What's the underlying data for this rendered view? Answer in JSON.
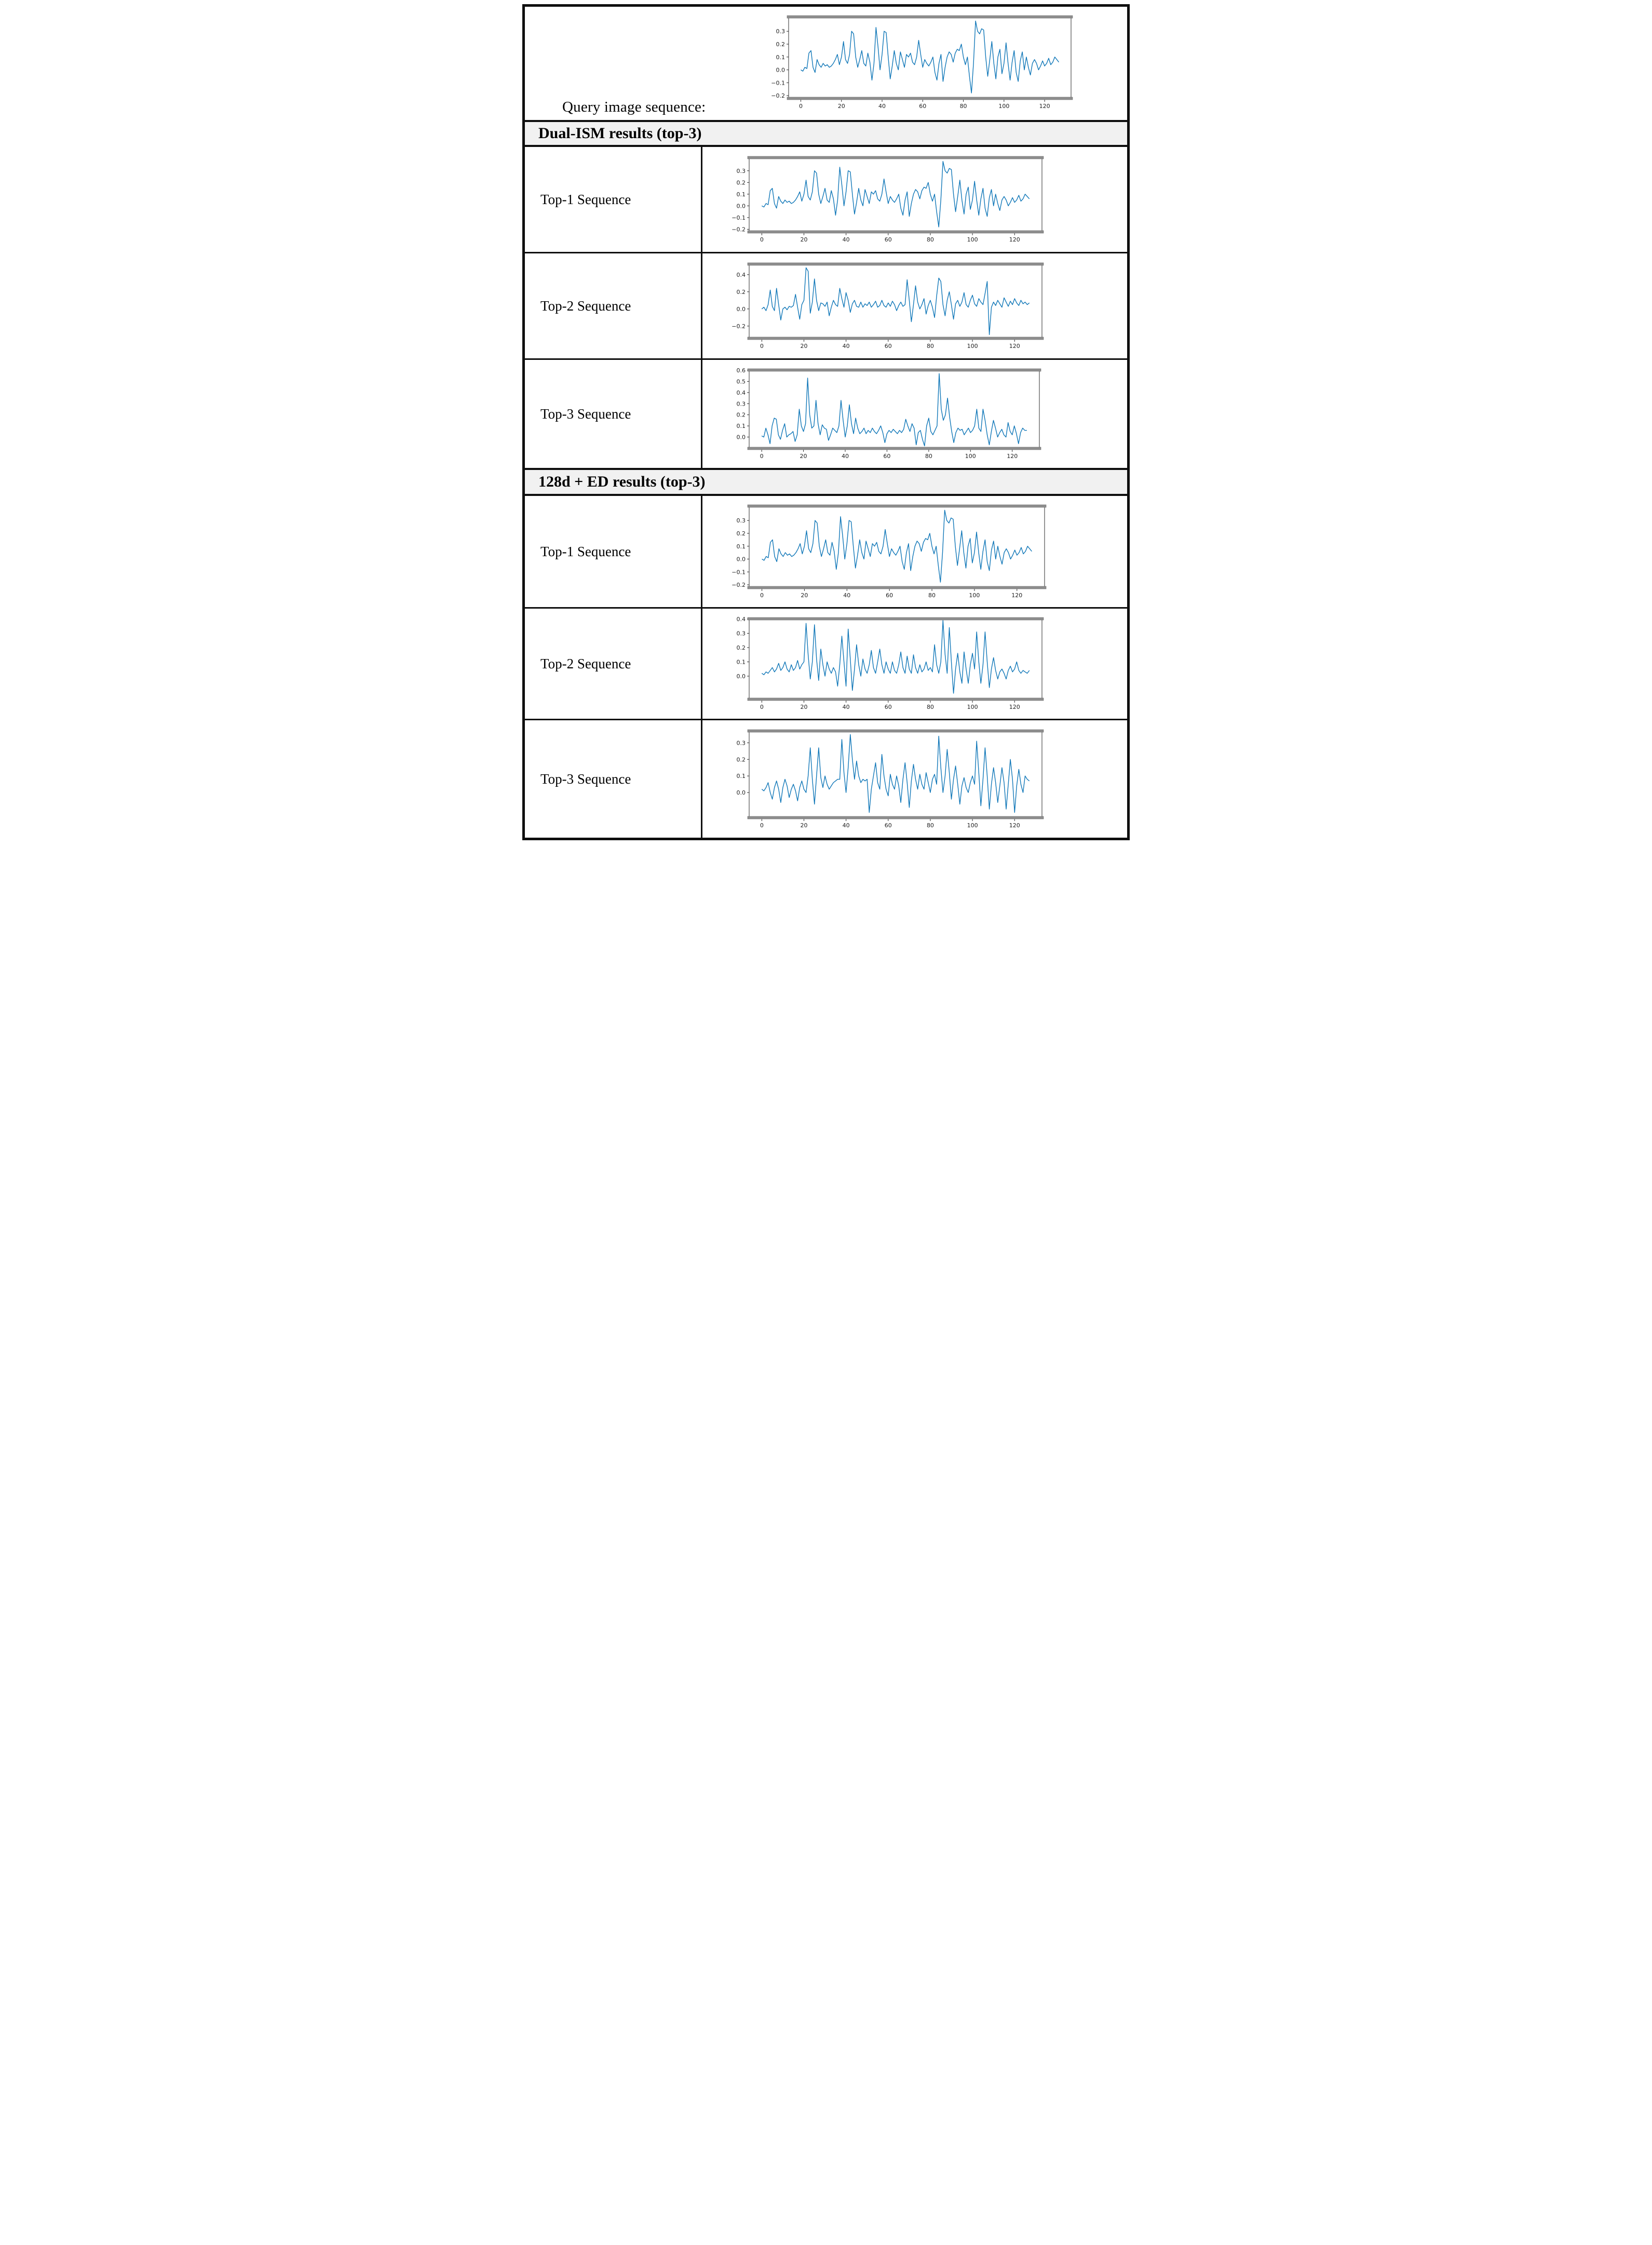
{
  "colors": {
    "line": "#1077b8",
    "header_bg": "#f1f1f1",
    "border": "#0f0f0f",
    "chart_edge_bar": "#8e8e8e",
    "tick": "#2b2b2b"
  },
  "query": {
    "label": "Query image sequence:"
  },
  "sections": [
    {
      "header": "Dual-ISM results (top-3)",
      "rows": [
        {
          "label": "Top-1 Sequence",
          "chart_id": "dual_top1"
        },
        {
          "label": "Top-2 Sequence",
          "chart_id": "dual_top2"
        },
        {
          "label": "Top-3 Sequence",
          "chart_id": "dual_top3"
        }
      ]
    },
    {
      "header": "128d + ED results (top-3)",
      "rows": [
        {
          "label": "Top-1 Sequence",
          "chart_id": "ed_top1"
        },
        {
          "label": "Top-2 Sequence",
          "chart_id": "ed_top2"
        },
        {
          "label": "Top-3 Sequence",
          "chart_id": "ed_top3"
        }
      ]
    }
  ],
  "chart_data": [
    {
      "id": "query",
      "type": "line",
      "title": "",
      "xlabel": "",
      "ylabel": "",
      "x_start": 0,
      "x_step": 1,
      "xlim": [
        -6,
        133
      ],
      "ylim": [
        -0.22,
        0.41
      ],
      "xticks": [
        0,
        20,
        40,
        60,
        80,
        100,
        120
      ],
      "yticks": [
        0.3,
        0.2,
        0.1,
        0.0,
        -0.1,
        -0.2
      ],
      "values": [
        0.0,
        -0.01,
        0.02,
        0.01,
        0.13,
        0.15,
        0.02,
        -0.02,
        0.08,
        0.04,
        0.02,
        0.05,
        0.03,
        0.04,
        0.02,
        0.03,
        0.05,
        0.08,
        0.12,
        0.04,
        0.1,
        0.22,
        0.08,
        0.05,
        0.12,
        0.3,
        0.28,
        0.1,
        0.02,
        0.08,
        0.15,
        0.05,
        0.03,
        0.13,
        0.06,
        -0.08,
        0.05,
        0.33,
        0.18,
        0.0,
        0.12,
        0.3,
        0.29,
        0.1,
        -0.07,
        0.03,
        0.15,
        0.05,
        0.0,
        0.14,
        0.08,
        0.02,
        0.12,
        0.1,
        0.13,
        0.06,
        0.04,
        0.1,
        0.23,
        0.12,
        0.02,
        0.08,
        0.05,
        0.03,
        0.06,
        0.1,
        -0.02,
        -0.08,
        0.05,
        0.12,
        -0.09,
        0.02,
        0.1,
        0.14,
        0.12,
        0.06,
        0.13,
        0.16,
        0.15,
        0.2,
        0.1,
        0.04,
        0.1,
        -0.05,
        -0.18,
        0.05,
        0.38,
        0.3,
        0.28,
        0.32,
        0.31,
        0.1,
        -0.05,
        0.08,
        0.22,
        0.05,
        -0.07,
        0.1,
        0.16,
        -0.03,
        0.05,
        0.21,
        0.05,
        -0.08,
        0.06,
        0.15,
        -0.02,
        -0.09,
        0.07,
        0.14,
        0.0,
        0.1,
        0.02,
        -0.04,
        0.05,
        0.08,
        0.05,
        0.0,
        0.03,
        0.07,
        0.03,
        0.05,
        0.09,
        0.04,
        0.06,
        0.1,
        0.08,
        0.06
      ]
    },
    {
      "id": "dual_top1",
      "type": "line",
      "title": "",
      "xlabel": "",
      "ylabel": "",
      "x_start": 0,
      "x_step": 1,
      "xlim": [
        -6,
        133
      ],
      "ylim": [
        -0.22,
        0.41
      ],
      "xticks": [
        0,
        20,
        40,
        60,
        80,
        100,
        120
      ],
      "yticks": [
        0.3,
        0.2,
        0.1,
        0.0,
        -0.1,
        -0.2
      ],
      "values": [
        0.0,
        -0.01,
        0.02,
        0.01,
        0.13,
        0.15,
        0.02,
        -0.02,
        0.08,
        0.04,
        0.02,
        0.05,
        0.03,
        0.04,
        0.02,
        0.03,
        0.05,
        0.08,
        0.12,
        0.04,
        0.1,
        0.22,
        0.08,
        0.05,
        0.12,
        0.3,
        0.28,
        0.1,
        0.02,
        0.08,
        0.15,
        0.05,
        0.03,
        0.13,
        0.06,
        -0.08,
        0.05,
        0.33,
        0.18,
        0.0,
        0.12,
        0.3,
        0.29,
        0.1,
        -0.07,
        0.03,
        0.15,
        0.05,
        0.0,
        0.14,
        0.08,
        0.02,
        0.12,
        0.1,
        0.13,
        0.06,
        0.04,
        0.1,
        0.23,
        0.12,
        0.02,
        0.08,
        0.05,
        0.03,
        0.06,
        0.1,
        -0.02,
        -0.08,
        0.05,
        0.12,
        -0.09,
        0.02,
        0.1,
        0.14,
        0.12,
        0.06,
        0.13,
        0.16,
        0.15,
        0.2,
        0.1,
        0.04,
        0.1,
        -0.05,
        -0.18,
        0.05,
        0.38,
        0.3,
        0.28,
        0.32,
        0.31,
        0.1,
        -0.05,
        0.08,
        0.22,
        0.05,
        -0.07,
        0.1,
        0.16,
        -0.03,
        0.05,
        0.21,
        0.05,
        -0.08,
        0.06,
        0.15,
        -0.02,
        -0.09,
        0.07,
        0.14,
        0.0,
        0.1,
        0.02,
        -0.04,
        0.05,
        0.08,
        0.05,
        0.0,
        0.03,
        0.07,
        0.03,
        0.05,
        0.09,
        0.04,
        0.06,
        0.1,
        0.08,
        0.06
      ]
    },
    {
      "id": "dual_top2",
      "type": "line",
      "title": "",
      "xlabel": "",
      "ylabel": "",
      "x_start": 0,
      "x_step": 1,
      "xlim": [
        -6,
        133
      ],
      "ylim": [
        -0.34,
        0.52
      ],
      "xticks": [
        0,
        20,
        40,
        60,
        80,
        100,
        120
      ],
      "yticks": [
        0.4,
        0.2,
        0.0,
        -0.2
      ],
      "values": [
        0.0,
        0.02,
        -0.02,
        0.05,
        0.22,
        0.03,
        -0.02,
        0.24,
        0.05,
        -0.13,
        0.0,
        0.02,
        -0.01,
        0.03,
        0.02,
        0.04,
        0.17,
        0.02,
        -0.12,
        0.05,
        0.1,
        0.48,
        0.44,
        -0.05,
        0.08,
        0.35,
        0.1,
        -0.02,
        0.07,
        0.06,
        0.03,
        0.08,
        -0.08,
        0.02,
        0.1,
        0.05,
        0.03,
        0.24,
        0.12,
        0.02,
        0.19,
        0.1,
        -0.04,
        0.06,
        0.1,
        0.03,
        0.02,
        0.08,
        0.02,
        0.06,
        0.04,
        0.08,
        0.02,
        0.05,
        0.09,
        0.02,
        0.04,
        0.1,
        0.04,
        0.02,
        0.07,
        0.03,
        0.09,
        0.05,
        -0.02,
        0.04,
        0.08,
        0.03,
        0.05,
        0.34,
        0.1,
        -0.15,
        0.05,
        0.27,
        0.08,
        0.0,
        0.05,
        0.12,
        -0.06,
        0.04,
        0.1,
        0.02,
        -0.1,
        0.15,
        0.36,
        0.32,
        0.05,
        -0.08,
        0.1,
        0.2,
        0.05,
        -0.12,
        0.06,
        0.1,
        0.03,
        0.08,
        0.19,
        0.05,
        0.02,
        0.1,
        0.16,
        0.06,
        0.03,
        0.12,
        0.08,
        0.05,
        0.18,
        0.32,
        -0.3,
        0.02,
        0.08,
        0.04,
        0.1,
        0.06,
        0.02,
        0.13,
        0.08,
        0.03,
        0.09,
        0.05,
        0.12,
        0.07,
        0.04,
        0.1,
        0.06,
        0.08,
        0.05,
        0.07
      ]
    },
    {
      "id": "dual_top3",
      "type": "line",
      "title": "",
      "xlabel": "",
      "ylabel": "",
      "x_start": 0,
      "x_step": 1,
      "xlim": [
        -6,
        133
      ],
      "ylim": [
        -0.1,
        0.6
      ],
      "xticks": [
        0,
        20,
        40,
        60,
        80,
        100,
        120
      ],
      "yticks": [
        0.6,
        0.5,
        0.4,
        0.3,
        0.2,
        0.1,
        0.0
      ],
      "values": [
        0.01,
        0.0,
        0.08,
        0.02,
        -0.06,
        0.1,
        0.17,
        0.16,
        0.02,
        -0.02,
        0.06,
        0.12,
        0.0,
        0.02,
        0.03,
        0.05,
        -0.04,
        0.02,
        0.25,
        0.1,
        0.05,
        0.12,
        0.53,
        0.2,
        0.08,
        0.1,
        0.33,
        0.12,
        0.02,
        0.11,
        0.08,
        0.07,
        -0.03,
        0.02,
        0.08,
        0.06,
        0.04,
        0.1,
        0.33,
        0.15,
        0.0,
        0.1,
        0.29,
        0.12,
        0.03,
        0.17,
        0.08,
        0.03,
        0.05,
        0.08,
        0.03,
        0.06,
        0.04,
        0.08,
        0.05,
        0.03,
        0.06,
        0.1,
        0.04,
        -0.05,
        0.03,
        0.06,
        0.04,
        0.07,
        0.05,
        0.03,
        0.06,
        0.04,
        0.07,
        0.16,
        0.1,
        0.05,
        0.12,
        0.08,
        -0.07,
        0.04,
        0.06,
        -0.02,
        -0.08,
        0.1,
        0.17,
        0.05,
        0.02,
        0.06,
        0.1,
        0.57,
        0.25,
        0.15,
        0.2,
        0.35,
        0.18,
        0.05,
        -0.05,
        0.04,
        0.08,
        0.06,
        0.07,
        0.02,
        0.05,
        0.08,
        0.04,
        0.06,
        0.1,
        0.25,
        0.08,
        0.05,
        0.25,
        0.15,
        0.02,
        -0.07,
        0.05,
        0.15,
        0.08,
        0.0,
        0.04,
        0.07,
        0.02,
        0.0,
        0.13,
        0.05,
        0.02,
        0.1,
        0.03,
        -0.06,
        0.04,
        0.08,
        0.06,
        0.06
      ]
    },
    {
      "id": "ed_top1",
      "type": "line",
      "title": "",
      "xlabel": "",
      "ylabel": "",
      "x_start": 0,
      "x_step": 1,
      "xlim": [
        -6,
        133
      ],
      "ylim": [
        -0.22,
        0.41
      ],
      "xticks": [
        0,
        20,
        40,
        60,
        80,
        100,
        120
      ],
      "yticks": [
        0.3,
        0.2,
        0.1,
        0.0,
        -0.1,
        -0.2
      ],
      "values": [
        0.0,
        -0.01,
        0.02,
        0.01,
        0.13,
        0.15,
        0.02,
        -0.02,
        0.08,
        0.04,
        0.02,
        0.05,
        0.03,
        0.04,
        0.02,
        0.03,
        0.05,
        0.08,
        0.12,
        0.04,
        0.1,
        0.22,
        0.08,
        0.05,
        0.12,
        0.3,
        0.28,
        0.1,
        0.02,
        0.08,
        0.15,
        0.05,
        0.03,
        0.13,
        0.06,
        -0.08,
        0.05,
        0.33,
        0.18,
        0.0,
        0.12,
        0.3,
        0.29,
        0.1,
        -0.07,
        0.03,
        0.15,
        0.05,
        0.0,
        0.14,
        0.08,
        0.02,
        0.12,
        0.1,
        0.13,
        0.06,
        0.04,
        0.1,
        0.23,
        0.12,
        0.02,
        0.08,
        0.05,
        0.03,
        0.06,
        0.1,
        -0.02,
        -0.08,
        0.05,
        0.12,
        -0.09,
        0.02,
        0.1,
        0.14,
        0.12,
        0.06,
        0.13,
        0.16,
        0.15,
        0.2,
        0.1,
        0.04,
        0.1,
        -0.05,
        -0.18,
        0.05,
        0.38,
        0.3,
        0.28,
        0.32,
        0.31,
        0.1,
        -0.05,
        0.08,
        0.22,
        0.05,
        -0.07,
        0.1,
        0.16,
        -0.03,
        0.05,
        0.21,
        0.05,
        -0.08,
        0.06,
        0.15,
        -0.02,
        -0.09,
        0.07,
        0.14,
        0.0,
        0.1,
        0.02,
        -0.04,
        0.05,
        0.08,
        0.05,
        0.0,
        0.03,
        0.07,
        0.03,
        0.05,
        0.09,
        0.04,
        0.06,
        0.1,
        0.08,
        0.06
      ]
    },
    {
      "id": "ed_top2",
      "type": "line",
      "title": "",
      "xlabel": "",
      "ylabel": "",
      "x_start": 0,
      "x_step": 1,
      "xlim": [
        -6,
        133
      ],
      "ylim": [
        -0.16,
        0.4
      ],
      "xticks": [
        0,
        20,
        40,
        60,
        80,
        100,
        120
      ],
      "yticks": [
        0.4,
        0.3,
        0.2,
        0.1,
        0.0
      ],
      "values": [
        0.02,
        0.01,
        0.03,
        0.02,
        0.04,
        0.06,
        0.03,
        0.05,
        0.09,
        0.04,
        0.06,
        0.1,
        0.05,
        0.03,
        0.08,
        0.04,
        0.06,
        0.11,
        0.05,
        0.08,
        0.1,
        0.37,
        0.15,
        -0.02,
        0.1,
        0.36,
        0.12,
        -0.03,
        0.19,
        0.08,
        0.0,
        0.1,
        0.05,
        0.02,
        0.06,
        0.03,
        -0.07,
        0.08,
        0.28,
        0.1,
        -0.07,
        0.33,
        0.12,
        -0.1,
        0.05,
        0.22,
        0.08,
        0.0,
        0.12,
        0.05,
        0.02,
        0.08,
        0.18,
        0.06,
        0.02,
        0.1,
        0.19,
        0.08,
        0.02,
        0.1,
        0.05,
        0.02,
        0.1,
        0.04,
        0.02,
        0.08,
        0.17,
        0.06,
        0.02,
        0.14,
        0.05,
        0.02,
        0.15,
        0.06,
        0.02,
        0.08,
        0.03,
        0.05,
        0.1,
        0.04,
        0.06,
        0.03,
        0.22,
        0.08,
        0.02,
        0.1,
        0.39,
        0.15,
        0.02,
        0.34,
        0.1,
        -0.12,
        0.05,
        0.16,
        0.03,
        -0.05,
        0.17,
        0.05,
        -0.05,
        0.08,
        0.16,
        0.05,
        0.31,
        0.1,
        -0.05,
        0.08,
        0.31,
        0.1,
        -0.08,
        0.05,
        0.13,
        0.04,
        -0.02,
        0.03,
        0.05,
        0.02,
        -0.02,
        0.04,
        0.07,
        0.03,
        0.05,
        0.1,
        0.04,
        0.02,
        0.04,
        0.03,
        0.02,
        0.04
      ]
    },
    {
      "id": "ed_top3",
      "type": "line",
      "title": "",
      "xlabel": "",
      "ylabel": "",
      "x_start": 0,
      "x_step": 1,
      "xlim": [
        -6,
        133
      ],
      "ylim": [
        -0.15,
        0.37
      ],
      "xticks": [
        0,
        20,
        40,
        60,
        80,
        100,
        120
      ],
      "yticks": [
        0.3,
        0.2,
        0.1,
        0.0
      ],
      "values": [
        0.02,
        0.01,
        0.03,
        0.06,
        0.0,
        -0.04,
        0.03,
        0.07,
        0.02,
        -0.06,
        0.03,
        0.08,
        0.04,
        -0.03,
        0.02,
        0.05,
        0.01,
        -0.05,
        0.03,
        0.07,
        0.02,
        0.0,
        0.1,
        0.27,
        0.08,
        -0.07,
        0.1,
        0.27,
        0.09,
        0.03,
        0.1,
        0.05,
        0.02,
        0.04,
        0.06,
        0.07,
        0.08,
        0.08,
        0.32,
        0.12,
        0.0,
        0.15,
        0.35,
        0.2,
        0.08,
        0.19,
        0.1,
        0.06,
        0.08,
        0.07,
        0.08,
        -0.12,
        0.02,
        0.1,
        0.18,
        0.06,
        0.02,
        0.23,
        0.1,
        0.02,
        -0.02,
        0.11,
        0.05,
        0.02,
        0.1,
        0.04,
        -0.06,
        0.08,
        0.18,
        0.06,
        -0.09,
        0.07,
        0.17,
        0.08,
        0.02,
        0.11,
        0.05,
        0.02,
        0.12,
        0.06,
        0.0,
        0.08,
        0.11,
        0.05,
        0.34,
        0.15,
        0.0,
        0.1,
        0.26,
        0.12,
        -0.04,
        0.08,
        0.16,
        0.05,
        -0.07,
        0.04,
        0.09,
        0.03,
        0.0,
        0.06,
        0.1,
        0.05,
        0.31,
        0.12,
        -0.08,
        0.08,
        0.27,
        0.1,
        -0.1,
        0.05,
        0.15,
        0.06,
        -0.06,
        0.04,
        0.15,
        0.06,
        -0.1,
        0.05,
        0.2,
        0.08,
        -0.12,
        0.04,
        0.14,
        0.05,
        0.0,
        0.1,
        0.08,
        0.07
      ]
    }
  ]
}
